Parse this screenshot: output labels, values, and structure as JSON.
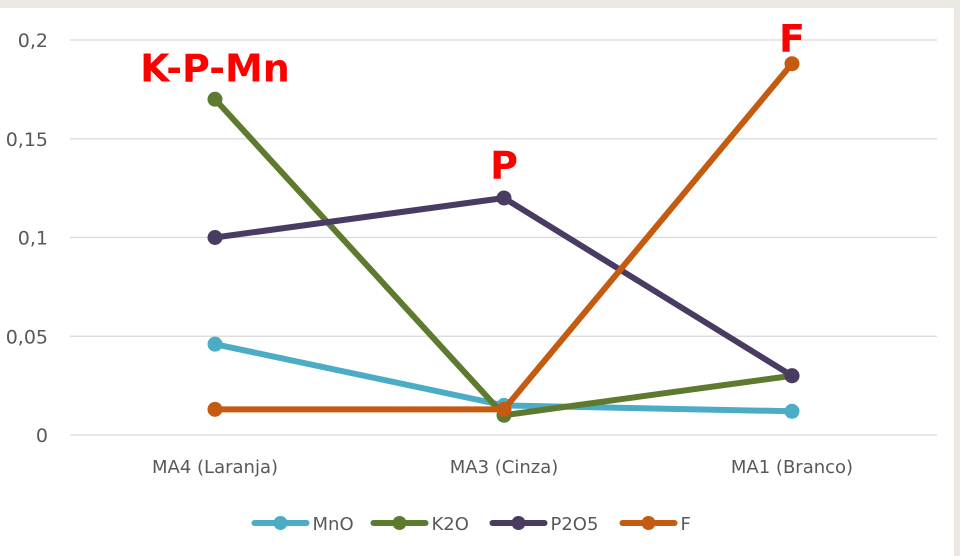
{
  "chart_data": {
    "type": "line",
    "categories": [
      "MA4 (Laranja)",
      "MA3 (Cinza)",
      "MA1 (Branco)"
    ],
    "ylim": [
      0,
      0.2
    ],
    "yticks": [
      0,
      0.05,
      0.1,
      0.15,
      0.2
    ],
    "ytick_labels": [
      "0",
      "0,05",
      "0,1",
      "0,15",
      "0,2"
    ],
    "grid": true,
    "legend_position": "bottom",
    "series": [
      {
        "name": "MnO",
        "color": "#4bacc6",
        "values": [
          0.046,
          0.015,
          0.012
        ]
      },
      {
        "name": "K2O",
        "color": "#5e7a2f",
        "values": [
          0.17,
          0.01,
          0.03
        ]
      },
      {
        "name": "P2O5",
        "color": "#4a3b63",
        "values": [
          0.1,
          0.12,
          0.03
        ]
      },
      {
        "name": "F",
        "color": "#c55a11",
        "values": [
          0.013,
          0.013,
          0.188
        ]
      }
    ],
    "annotations": [
      {
        "text": "K-P-Mn",
        "category_index": 0,
        "y": 0.185,
        "color": "#ff0000"
      },
      {
        "text": "P",
        "category_index": 1,
        "y": 0.136,
        "color": "#ff0000"
      },
      {
        "text": "F",
        "category_index": 2,
        "y": 0.2,
        "color": "#ff0000"
      }
    ]
  }
}
